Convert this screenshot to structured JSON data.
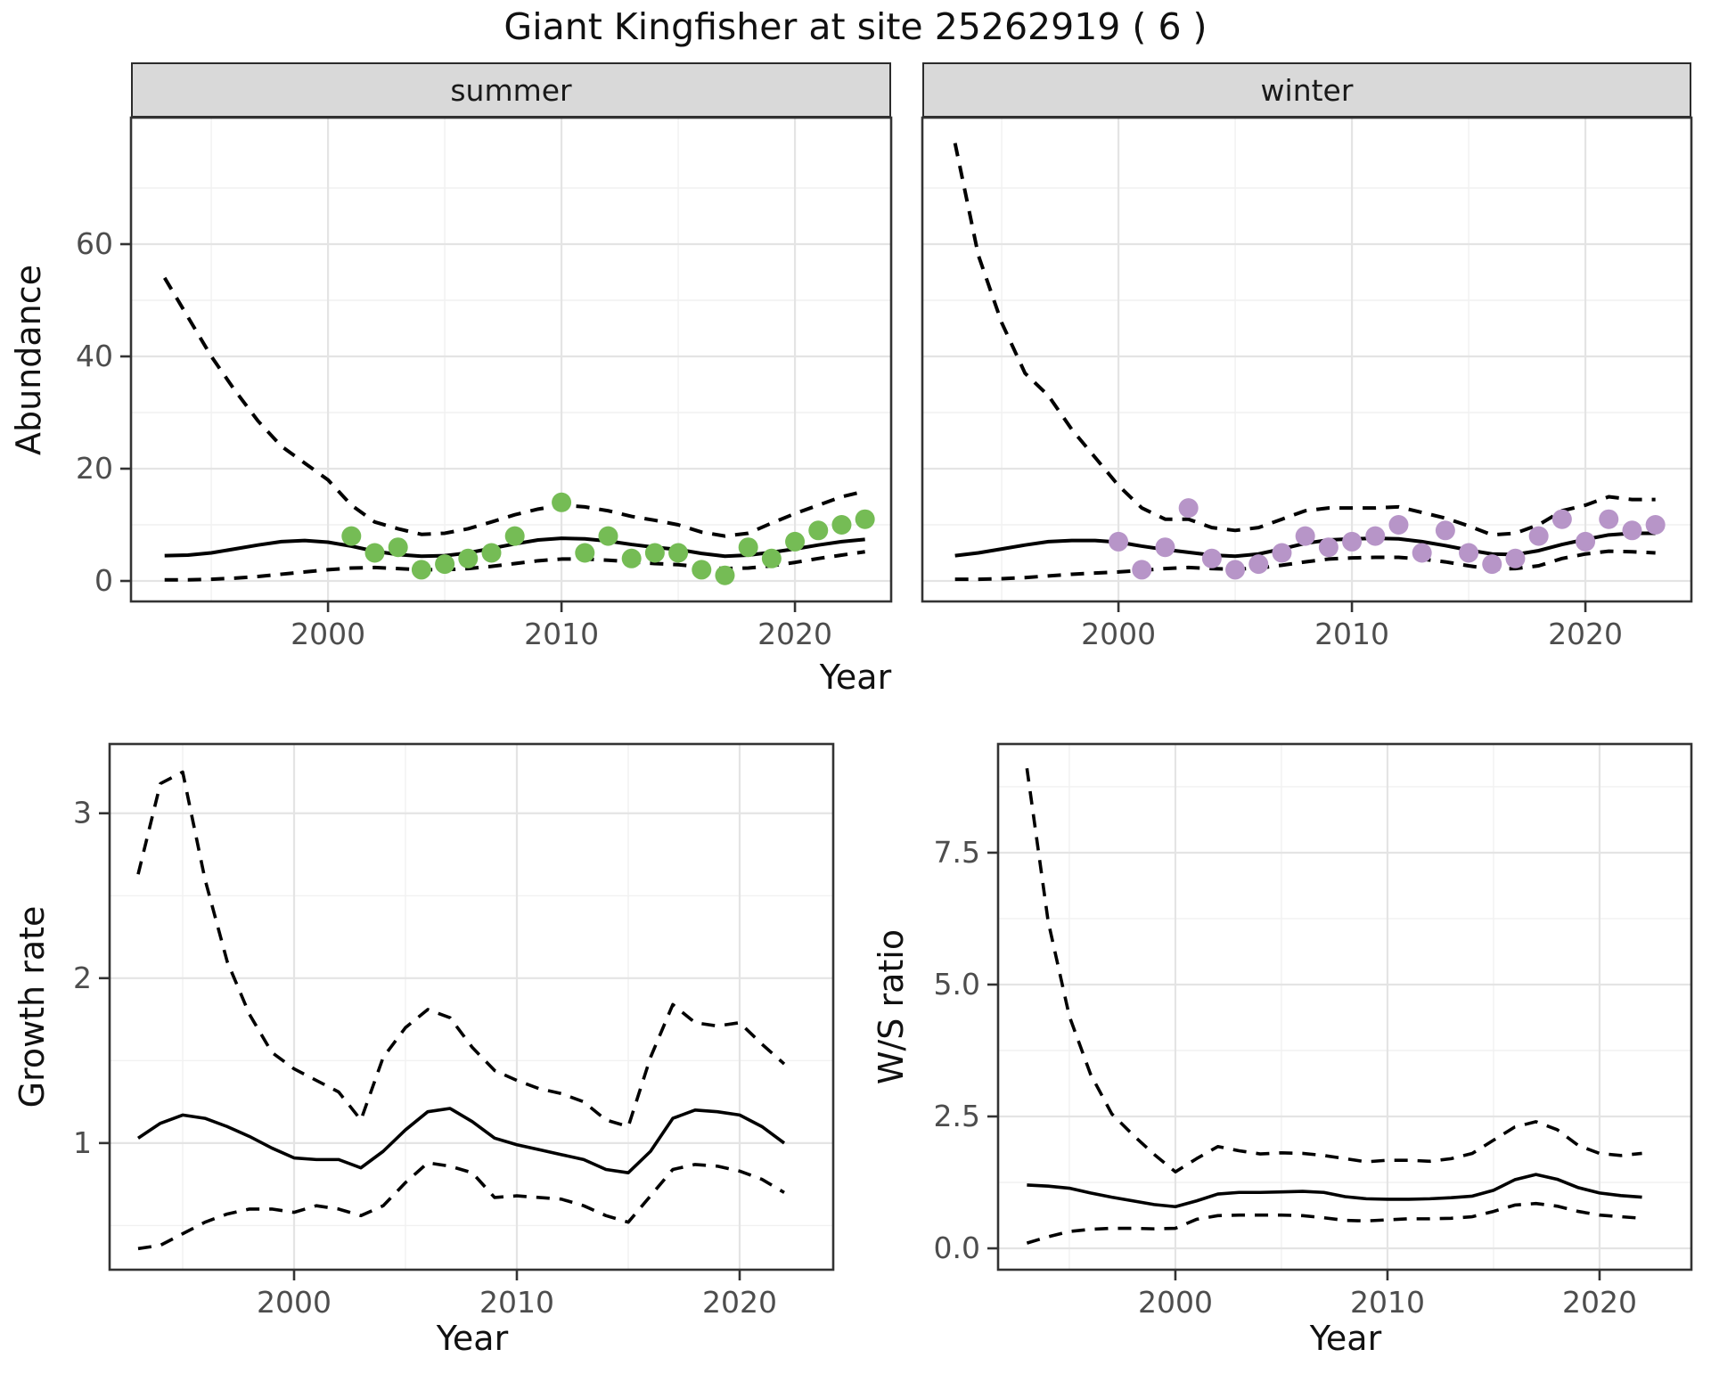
{
  "title": "Giant Kingfisher at site 25262919 ( 6 )",
  "colors": {
    "summer_points": "#75bc55",
    "winter_points": "#b795c8",
    "line": "#000000",
    "strip_bg": "#d9d9d9",
    "panel_border": "#333333",
    "grid_major": "#e4e4e4",
    "grid_minor": "#f1f1f1",
    "tick_text": "#4d4d4d"
  },
  "chart_data": [
    {
      "type": "scatter",
      "facet": "summer",
      "xlabel": "Year",
      "ylabel": "Abundance",
      "xlim": [
        1991.56,
        2024.12
      ],
      "ylim": [
        -3.65,
        82.54
      ],
      "xticks": [
        2000,
        2010,
        2020
      ],
      "xtick_labels": [
        "2000",
        "2010",
        "2020"
      ],
      "x_minor": [
        1995,
        2005,
        2015
      ],
      "yticks": [
        0,
        20,
        40,
        60
      ],
      "ytick_labels": [
        "0",
        "20",
        "40",
        "60"
      ],
      "y_minor": [
        10,
        30,
        50,
        70
      ],
      "years": [
        1993,
        1994,
        1995,
        1996,
        1997,
        1998,
        1999,
        2000,
        2001,
        2002,
        2003,
        2004,
        2005,
        2006,
        2007,
        2008,
        2009,
        2010,
        2011,
        2012,
        2013,
        2014,
        2015,
        2016,
        2017,
        2018,
        2019,
        2020,
        2021,
        2022,
        2023
      ],
      "fit": [
        4.5,
        4.6,
        5.0,
        5.7,
        6.4,
        7.0,
        7.2,
        6.9,
        6.2,
        5.3,
        4.7,
        4.4,
        4.5,
        5.0,
        5.8,
        6.6,
        7.3,
        7.6,
        7.5,
        7.1,
        6.5,
        6.0,
        5.6,
        4.9,
        4.4,
        4.6,
        5.1,
        5.7,
        6.4,
        7.0,
        7.4
      ],
      "upper": [
        54,
        47,
        40,
        34,
        28.5,
        24,
        21,
        18,
        13.5,
        10.5,
        9.3,
        8.3,
        8.5,
        9.3,
        10.5,
        11.8,
        12.8,
        13.5,
        13.2,
        12.5,
        11.5,
        10.8,
        10,
        8.7,
        8,
        8.5,
        10.3,
        12,
        13.5,
        15,
        16
      ],
      "lower": [
        0.2,
        0.2,
        0.3,
        0.5,
        0.8,
        1.2,
        1.6,
        2.0,
        2.3,
        2.4,
        2.2,
        2.0,
        2.0,
        2.2,
        2.6,
        3.1,
        3.6,
        3.9,
        3.9,
        3.7,
        3.4,
        3.1,
        2.9,
        2.5,
        2.2,
        2.3,
        2.7,
        3.3,
        4.0,
        4.6,
        5.2
      ],
      "point_years": [
        2001,
        2002,
        2003,
        2004,
        2005,
        2006,
        2007,
        2008,
        2010,
        2011,
        2012,
        2013,
        2014,
        2015,
        2016,
        2017,
        2018,
        2019,
        2020,
        2021,
        2022,
        2023
      ],
      "point_values": [
        8,
        5,
        6,
        2,
        3,
        4,
        5,
        8,
        14,
        5,
        8,
        4,
        5,
        5,
        2,
        1,
        6,
        4,
        7,
        9,
        10,
        11
      ],
      "point_color_key": "summer_points"
    },
    {
      "type": "scatter",
      "facet": "winter",
      "xlabel": "Year",
      "ylabel": "Abundance",
      "xlim": [
        1991.6,
        2024.54
      ],
      "ylim": [
        -3.65,
        82.54
      ],
      "xticks": [
        2000,
        2010,
        2020
      ],
      "xtick_labels": [
        "2000",
        "2010",
        "2020"
      ],
      "x_minor": [
        1995,
        2005,
        2015
      ],
      "yticks": [
        0,
        20,
        40,
        60
      ],
      "ytick_labels": [],
      "y_minor": [
        10,
        30,
        50,
        70
      ],
      "years": [
        1993,
        1994,
        1995,
        1996,
        1997,
        1998,
        1999,
        2000,
        2001,
        2002,
        2003,
        2004,
        2005,
        2006,
        2007,
        2008,
        2009,
        2010,
        2011,
        2012,
        2013,
        2014,
        2015,
        2016,
        2017,
        2018,
        2019,
        2020,
        2021,
        2022,
        2023
      ],
      "fit": [
        4.5,
        5.0,
        5.7,
        6.4,
        7.0,
        7.2,
        7.2,
        6.9,
        6.2,
        5.6,
        5.1,
        4.6,
        4.4,
        4.8,
        5.7,
        6.7,
        7.3,
        7.5,
        7.6,
        7.5,
        7.0,
        6.3,
        5.5,
        4.8,
        4.7,
        5.4,
        6.5,
        7.4,
        8.2,
        8.5,
        8.5
      ],
      "upper": [
        78,
        58,
        46,
        37,
        33,
        27,
        22,
        17,
        13,
        11,
        11,
        9.5,
        9,
        9.5,
        11,
        12.5,
        13,
        13,
        13,
        13.2,
        12.2,
        11.2,
        9.8,
        8.2,
        8.5,
        10,
        12.5,
        13.5,
        15,
        14.5,
        14.5
      ],
      "lower": [
        0.3,
        0.3,
        0.4,
        0.6,
        0.9,
        1.2,
        1.4,
        1.6,
        1.9,
        2.2,
        2.4,
        2.2,
        2.1,
        2.3,
        2.8,
        3.4,
        3.9,
        4.1,
        4.2,
        4.2,
        3.9,
        3.4,
        2.7,
        2.1,
        2.2,
        2.7,
        4.0,
        4.8,
        5.3,
        5.2,
        5.0
      ],
      "point_years": [
        2000,
        2001,
        2002,
        2003,
        2004,
        2005,
        2006,
        2007,
        2008,
        2009,
        2010,
        2011,
        2012,
        2013,
        2014,
        2015,
        2016,
        2017,
        2018,
        2019,
        2020,
        2021,
        2022,
        2023
      ],
      "point_values": [
        7,
        2,
        6,
        13,
        4,
        2,
        3,
        5,
        8,
        6,
        7,
        8,
        10,
        5,
        9,
        5,
        3,
        4,
        8,
        11,
        7,
        11,
        9,
        10
      ],
      "point_color_key": "winter_points"
    },
    {
      "type": "line",
      "facet": "",
      "xlabel": "Year",
      "ylabel": "Growth rate",
      "xlim": [
        1991.72,
        2024.2
      ],
      "ylim": [
        0.232,
        3.42
      ],
      "xticks": [
        2000,
        2010,
        2020
      ],
      "xtick_labels": [
        "2000",
        "2010",
        "2020"
      ],
      "x_minor": [
        1995,
        2005,
        2015
      ],
      "yticks": [
        1,
        2,
        3
      ],
      "ytick_labels": [
        "1",
        "2",
        "3"
      ],
      "y_minor": [
        0.5,
        1.5,
        2.5
      ],
      "years": [
        1993,
        1994,
        1995,
        1996,
        1997,
        1998,
        1999,
        2000,
        2001,
        2002,
        2003,
        2004,
        2005,
        2006,
        2007,
        2008,
        2009,
        2010,
        2011,
        2012,
        2013,
        2014,
        2015,
        2016,
        2017,
        2018,
        2019,
        2020,
        2021,
        2022
      ],
      "fit": [
        1.03,
        1.12,
        1.17,
        1.15,
        1.1,
        1.04,
        0.97,
        0.91,
        0.9,
        0.9,
        0.85,
        0.95,
        1.08,
        1.19,
        1.21,
        1.13,
        1.03,
        0.99,
        0.96,
        0.93,
        0.9,
        0.84,
        0.82,
        0.95,
        1.15,
        1.2,
        1.19,
        1.17,
        1.1,
        1.0
      ],
      "upper": [
        2.63,
        3.18,
        3.25,
        2.6,
        2.1,
        1.78,
        1.55,
        1.45,
        1.38,
        1.31,
        1.14,
        1.52,
        1.7,
        1.81,
        1.76,
        1.58,
        1.44,
        1.38,
        1.33,
        1.3,
        1.25,
        1.14,
        1.1,
        1.52,
        1.84,
        1.73,
        1.71,
        1.73,
        1.6,
        1.48
      ],
      "lower": [
        0.36,
        0.38,
        0.45,
        0.52,
        0.57,
        0.6,
        0.6,
        0.58,
        0.62,
        0.6,
        0.56,
        0.62,
        0.76,
        0.88,
        0.86,
        0.82,
        0.67,
        0.68,
        0.67,
        0.66,
        0.62,
        0.56,
        0.52,
        0.68,
        0.84,
        0.87,
        0.86,
        0.83,
        0.78,
        0.7
      ],
      "point_years": [],
      "point_values": [],
      "point_color_key": "summer_points"
    },
    {
      "type": "line",
      "facet": "",
      "xlabel": "Year",
      "ylabel": "W/S ratio",
      "xlim": [
        1991.64,
        2024.33
      ],
      "ylim": [
        -0.405,
        9.56
      ],
      "xticks": [
        2000,
        2010,
        2020
      ],
      "xtick_labels": [
        "2000",
        "2010",
        "2020"
      ],
      "x_minor": [
        1995,
        2005,
        2015
      ],
      "yticks": [
        0,
        2.5,
        5,
        7.5
      ],
      "ytick_labels": [
        "0.0",
        "2.5",
        "5.0",
        "7.5"
      ],
      "y_minor": [
        1.25,
        3.75,
        6.25,
        8.75
      ],
      "years": [
        1993,
        1994,
        1995,
        1996,
        1997,
        1998,
        1999,
        2000,
        2001,
        2002,
        2003,
        2004,
        2005,
        2006,
        2007,
        2008,
        2009,
        2010,
        2011,
        2012,
        2013,
        2014,
        2015,
        2016,
        2017,
        2018,
        2019,
        2020,
        2021,
        2022
      ],
      "fit": [
        1.2,
        1.18,
        1.14,
        1.05,
        0.97,
        0.9,
        0.83,
        0.79,
        0.9,
        1.03,
        1.06,
        1.06,
        1.07,
        1.08,
        1.06,
        0.98,
        0.94,
        0.93,
        0.93,
        0.94,
        0.96,
        0.99,
        1.1,
        1.3,
        1.4,
        1.31,
        1.15,
        1.05,
        1.0,
        0.97
      ],
      "upper": [
        9.1,
        6.2,
        4.4,
        3.3,
        2.55,
        2.15,
        1.78,
        1.45,
        1.7,
        1.93,
        1.85,
        1.79,
        1.81,
        1.8,
        1.76,
        1.7,
        1.64,
        1.67,
        1.67,
        1.65,
        1.7,
        1.8,
        2.05,
        2.3,
        2.4,
        2.25,
        1.95,
        1.8,
        1.76,
        1.8
      ],
      "lower": [
        0.1,
        0.22,
        0.32,
        0.36,
        0.38,
        0.38,
        0.37,
        0.38,
        0.55,
        0.62,
        0.63,
        0.63,
        0.63,
        0.62,
        0.58,
        0.53,
        0.52,
        0.54,
        0.56,
        0.56,
        0.57,
        0.6,
        0.7,
        0.82,
        0.85,
        0.8,
        0.7,
        0.63,
        0.6,
        0.57
      ],
      "point_years": [],
      "point_values": [],
      "point_color_key": "winter_points"
    }
  ]
}
